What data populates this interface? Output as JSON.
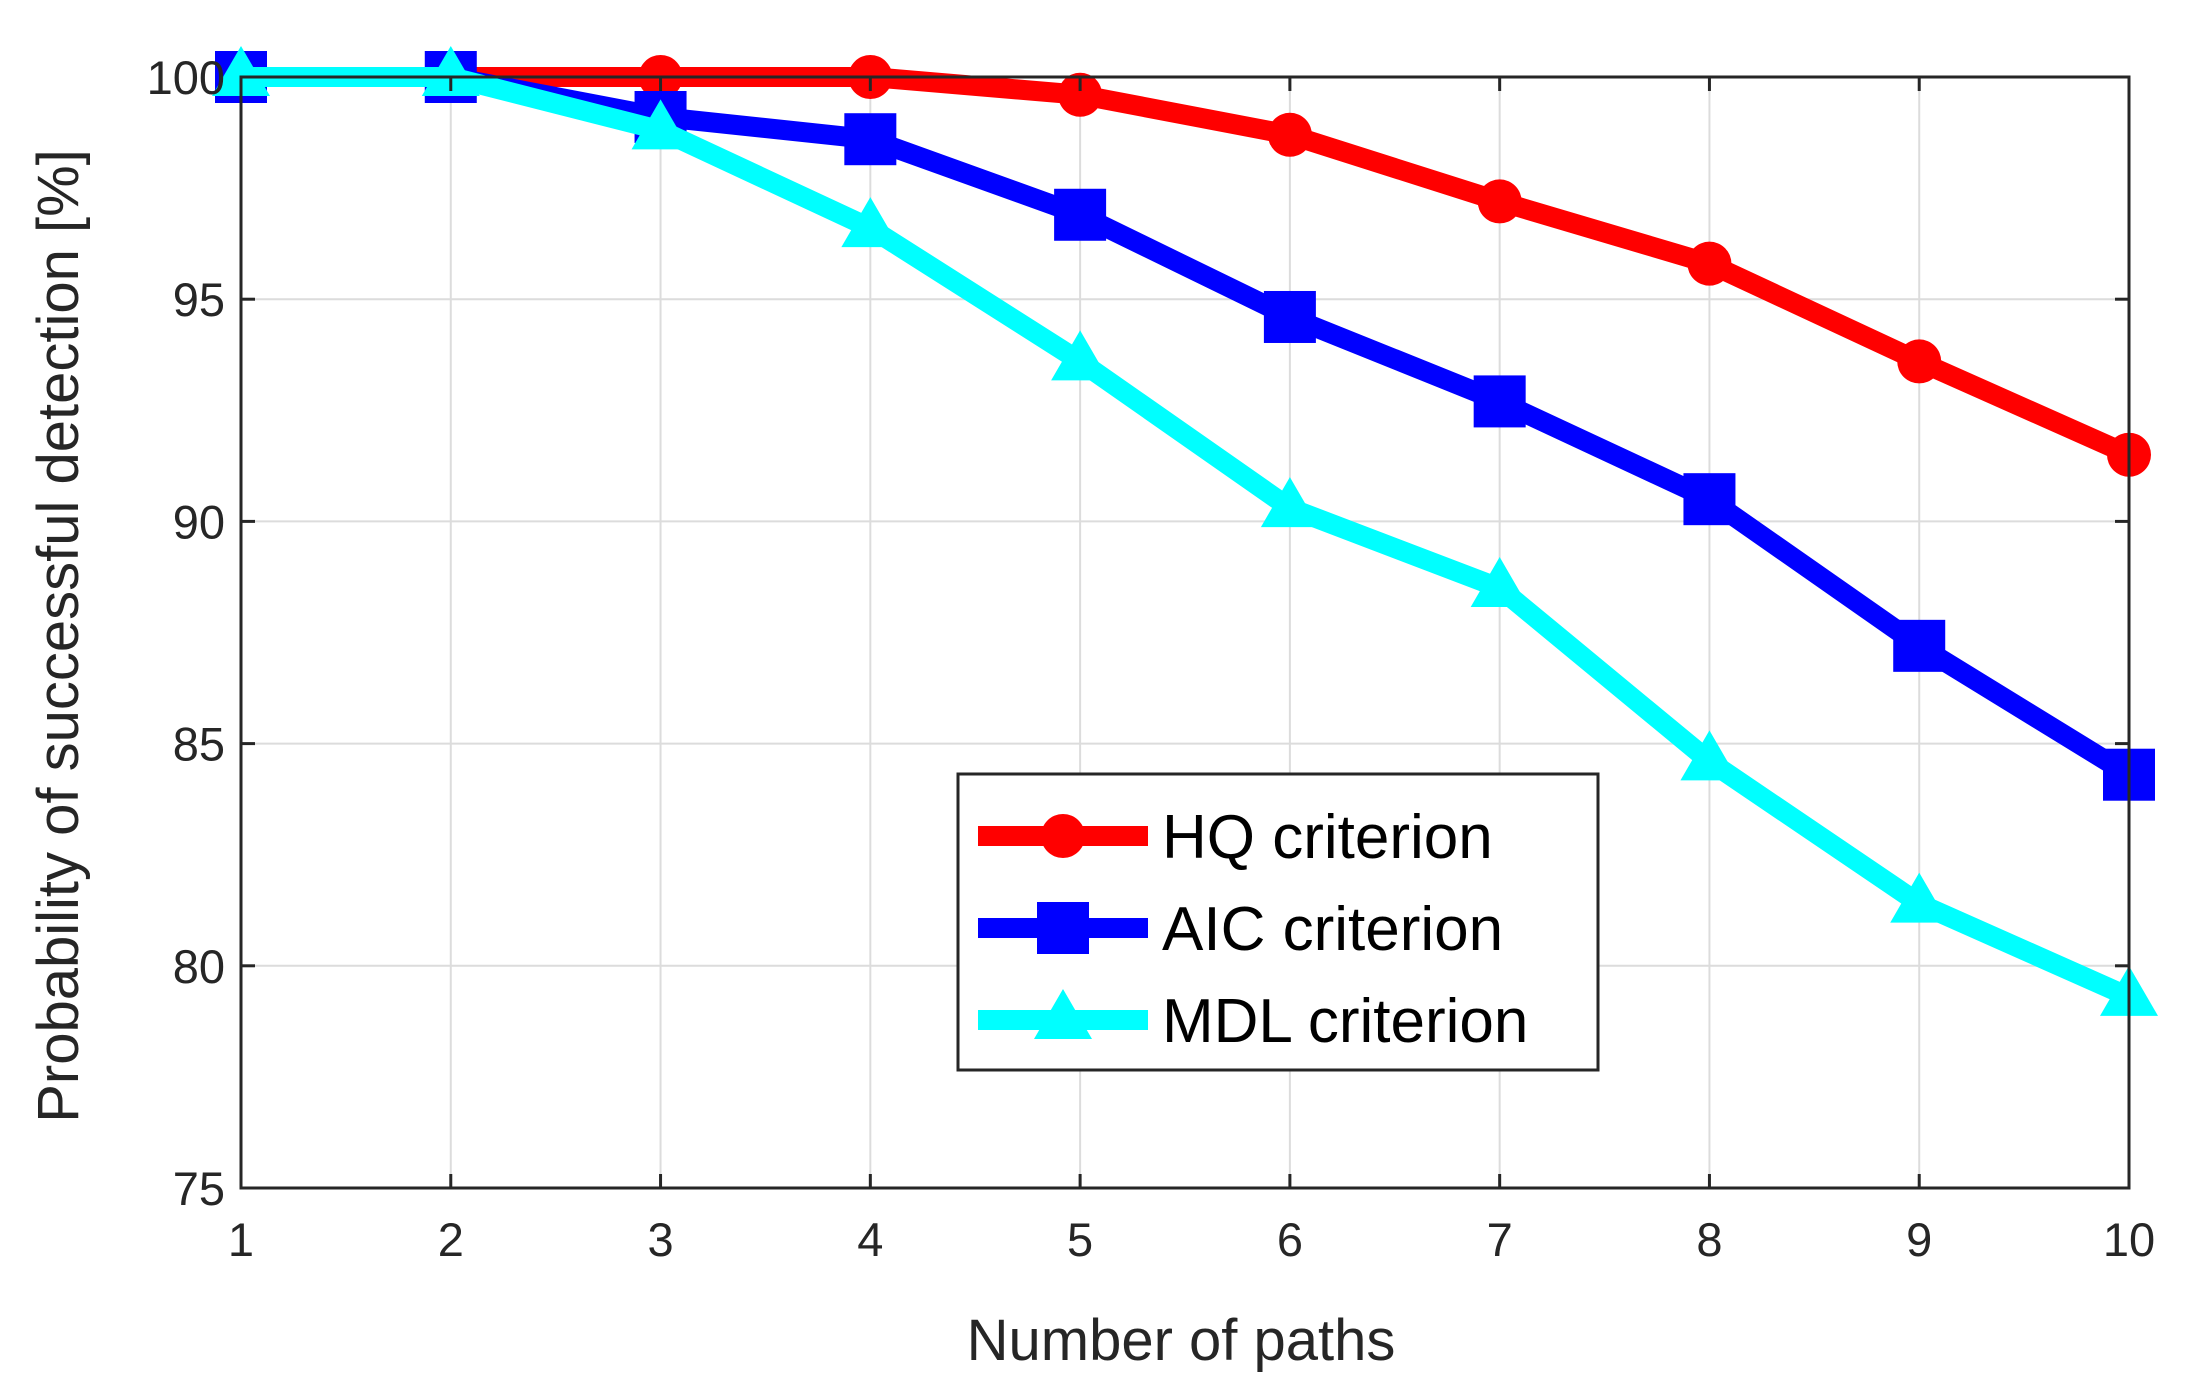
{
  "chart_data": {
    "type": "line",
    "title": "",
    "xlabel": "Number of paths",
    "ylabel": "Probability of successful detection [%]",
    "x": [
      1,
      2,
      3,
      4,
      5,
      6,
      7,
      8,
      9,
      10
    ],
    "xlim": [
      1,
      10
    ],
    "ylim": [
      75,
      100
    ],
    "xticks": [
      "1",
      "2",
      "3",
      "4",
      "5",
      "6",
      "7",
      "8",
      "9",
      "10"
    ],
    "yticks": [
      "75",
      "80",
      "85",
      "90",
      "95",
      "100"
    ],
    "ytick_values": [
      75,
      80,
      85,
      90,
      95,
      100
    ],
    "grid": true,
    "legend_position": "lower-center",
    "series": [
      {
        "name": "HQ criterion",
        "color": "#ff0000",
        "marker": "circle",
        "values": [
          100,
          100,
          100,
          100,
          99.6,
          98.7,
          97.2,
          95.8,
          93.6,
          91.5
        ]
      },
      {
        "name": "AIC criterion",
        "color": "#0000ff",
        "marker": "square",
        "values": [
          100,
          100,
          99.1,
          98.6,
          96.9,
          94.6,
          92.7,
          90.5,
          87.2,
          84.3
        ]
      },
      {
        "name": "MDL criterion",
        "color": "#00ffff",
        "marker": "triangle",
        "values": [
          100,
          100,
          98.8,
          96.6,
          93.6,
          90.3,
          88.5,
          84.6,
          81.4,
          79.3
        ]
      }
    ]
  }
}
